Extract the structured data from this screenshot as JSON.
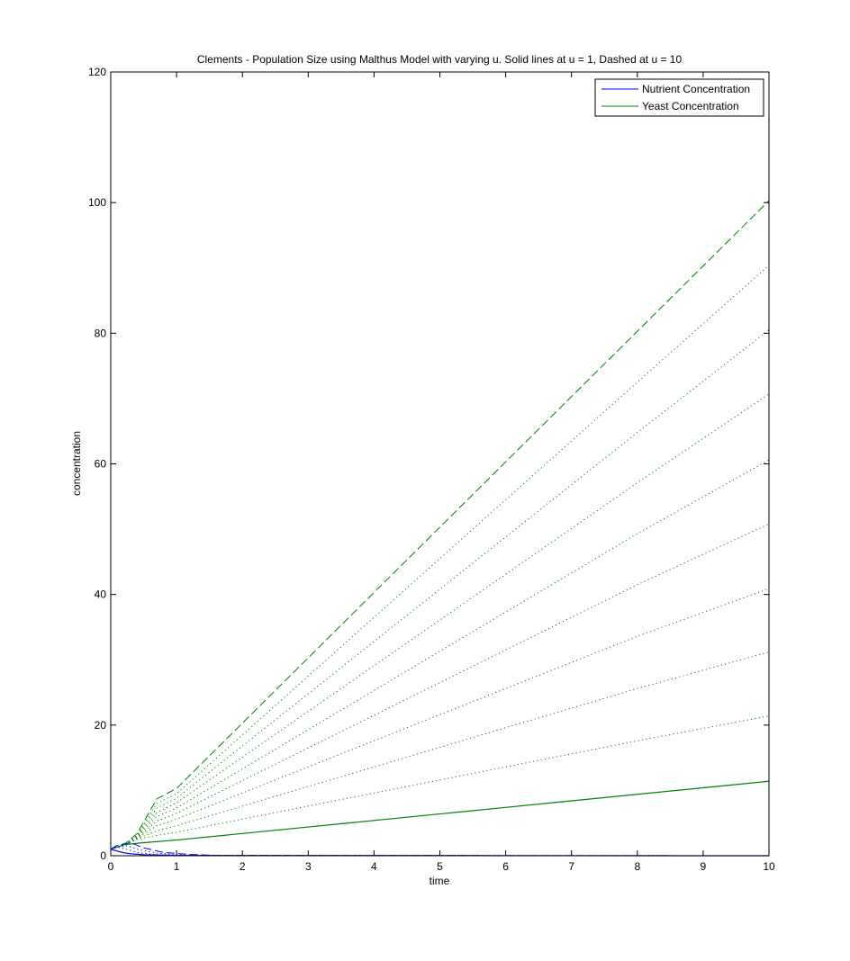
{
  "chart_data": {
    "type": "line",
    "title": "Clements - Population Size using Malthus Model with varying u. Solid lines at u = 1, Dashed at u = 10",
    "xlabel": "time",
    "ylabel": "concentration",
    "xlim": [
      0,
      10
    ],
    "ylim": [
      0,
      120
    ],
    "xticks": [
      0,
      1,
      2,
      3,
      4,
      5,
      6,
      7,
      8,
      9,
      10
    ],
    "yticks": [
      0,
      20,
      40,
      60,
      80,
      100,
      120
    ],
    "grid": false,
    "legend_position": "top-right",
    "legend": [
      {
        "label": "Nutrient Concentration",
        "color": "#0000ff"
      },
      {
        "label": "Yeast Concentration",
        "color": "#008000"
      }
    ],
    "colors": {
      "nutrient": "#0000ff",
      "yeast": "#008000"
    },
    "u_values": [
      1,
      2,
      3,
      4,
      5,
      6,
      7,
      8,
      9,
      10
    ],
    "yeast_series": [
      {
        "u": 1,
        "style": "solid",
        "points": [
          [
            0,
            1
          ],
          [
            0.2,
            1.7
          ],
          [
            0.5,
            2.0
          ],
          [
            1,
            2.4
          ],
          [
            2,
            3.4
          ],
          [
            3,
            4.4
          ],
          [
            4,
            5.4
          ],
          [
            5,
            6.4
          ],
          [
            6,
            7.4
          ],
          [
            7,
            8.4
          ],
          [
            8,
            9.4
          ],
          [
            9,
            10.4
          ],
          [
            10,
            11.4
          ]
        ]
      },
      {
        "u": 2,
        "style": "dotted",
        "points": [
          [
            0,
            1
          ],
          [
            0.2,
            1.5
          ],
          [
            0.4,
            2.5
          ],
          [
            0.7,
            3.1
          ],
          [
            1,
            3.6
          ],
          [
            2,
            5.6
          ],
          [
            4,
            9.6
          ],
          [
            6,
            13.6
          ],
          [
            8,
            17.6
          ],
          [
            10,
            21.4
          ]
        ]
      },
      {
        "u": 3,
        "style": "dotted",
        "points": [
          [
            0,
            1
          ],
          [
            0.2,
            1.5
          ],
          [
            0.4,
            2.6
          ],
          [
            0.7,
            3.8
          ],
          [
            1,
            4.6
          ],
          [
            2,
            7.6
          ],
          [
            4,
            13.6
          ],
          [
            6,
            19.6
          ],
          [
            8,
            25.6
          ],
          [
            10,
            31.2
          ]
        ]
      },
      {
        "u": 4,
        "style": "dotted",
        "points": [
          [
            0,
            1
          ],
          [
            0.2,
            1.5
          ],
          [
            0.4,
            2.7
          ],
          [
            0.7,
            4.6
          ],
          [
            1,
            5.6
          ],
          [
            2,
            9.6
          ],
          [
            4,
            17.6
          ],
          [
            6,
            25.6
          ],
          [
            8,
            33.6
          ],
          [
            10,
            40.9
          ]
        ]
      },
      {
        "u": 5,
        "style": "dotted",
        "points": [
          [
            0,
            1
          ],
          [
            0.2,
            1.5
          ],
          [
            0.4,
            2.8
          ],
          [
            0.7,
            5.3
          ],
          [
            1,
            6.5
          ],
          [
            2,
            11.5
          ],
          [
            4,
            21.5
          ],
          [
            6,
            31.5
          ],
          [
            8,
            41.5
          ],
          [
            10,
            50.8
          ]
        ]
      },
      {
        "u": 6,
        "style": "dotted",
        "points": [
          [
            0,
            1
          ],
          [
            0.2,
            1.6
          ],
          [
            0.4,
            2.9
          ],
          [
            0.7,
            6.0
          ],
          [
            1,
            7.3
          ],
          [
            2,
            13.3
          ],
          [
            4,
            25.3
          ],
          [
            6,
            37.3
          ],
          [
            8,
            49.3
          ],
          [
            10,
            60.6
          ]
        ]
      },
      {
        "u": 7,
        "style": "dotted",
        "points": [
          [
            0,
            1
          ],
          [
            0.2,
            1.6
          ],
          [
            0.4,
            3.0
          ],
          [
            0.7,
            6.6
          ],
          [
            1,
            8.1
          ],
          [
            2,
            15.1
          ],
          [
            4,
            29.1
          ],
          [
            6,
            43.1
          ],
          [
            8,
            57.1
          ],
          [
            10,
            70.7
          ]
        ]
      },
      {
        "u": 8,
        "style": "dotted",
        "points": [
          [
            0,
            1
          ],
          [
            0.2,
            1.6
          ],
          [
            0.4,
            3.1
          ],
          [
            0.7,
            7.3
          ],
          [
            1,
            8.8
          ],
          [
            2,
            16.8
          ],
          [
            4,
            32.8
          ],
          [
            6,
            48.8
          ],
          [
            8,
            64.8
          ],
          [
            10,
            80.5
          ]
        ]
      },
      {
        "u": 9,
        "style": "dotted",
        "points": [
          [
            0,
            1
          ],
          [
            0.2,
            1.6
          ],
          [
            0.4,
            3.2
          ],
          [
            0.7,
            8.0
          ],
          [
            1,
            9.5
          ],
          [
            2,
            18.5
          ],
          [
            4,
            36.5
          ],
          [
            6,
            54.5
          ],
          [
            8,
            72.5
          ],
          [
            10,
            90.4
          ]
        ]
      },
      {
        "u": 10,
        "style": "dashed",
        "points": [
          [
            0,
            1
          ],
          [
            0.2,
            1.7
          ],
          [
            0.4,
            3.4
          ],
          [
            0.7,
            8.7
          ],
          [
            1,
            10.3
          ],
          [
            2,
            20.3
          ],
          [
            4,
            40.3
          ],
          [
            6,
            60.3
          ],
          [
            8,
            80.3
          ],
          [
            10,
            100.3
          ]
        ]
      }
    ],
    "nutrient_series": [
      {
        "u": 1,
        "style": "solid",
        "points": [
          [
            0,
            1
          ],
          [
            0.1,
            0.7
          ],
          [
            0.2,
            0.45
          ],
          [
            0.3,
            0.3
          ],
          [
            0.5,
            0.15
          ],
          [
            1,
            0.05
          ],
          [
            2,
            0.02
          ],
          [
            10,
            0
          ]
        ]
      },
      {
        "u": 2,
        "style": "dotted",
        "points": [
          [
            0,
            1
          ],
          [
            0.1,
            1.3
          ],
          [
            0.2,
            1.1
          ],
          [
            0.4,
            0.5
          ],
          [
            0.7,
            0.15
          ],
          [
            1,
            0.05
          ],
          [
            10,
            0
          ]
        ]
      },
      {
        "u": 5,
        "style": "dotted",
        "points": [
          [
            0,
            1
          ],
          [
            0.1,
            1.5
          ],
          [
            0.25,
            1.5
          ],
          [
            0.4,
            1.0
          ],
          [
            0.7,
            0.4
          ],
          [
            1,
            0.15
          ],
          [
            1.5,
            0.05
          ],
          [
            10,
            0
          ]
        ]
      },
      {
        "u": 10,
        "style": "dashed",
        "points": [
          [
            0,
            1
          ],
          [
            0.1,
            1.6
          ],
          [
            0.3,
            2.0
          ],
          [
            0.5,
            1.2
          ],
          [
            0.8,
            0.5
          ],
          [
            1.2,
            0.2
          ],
          [
            1.6,
            0.05
          ],
          [
            10,
            0
          ]
        ]
      }
    ]
  }
}
